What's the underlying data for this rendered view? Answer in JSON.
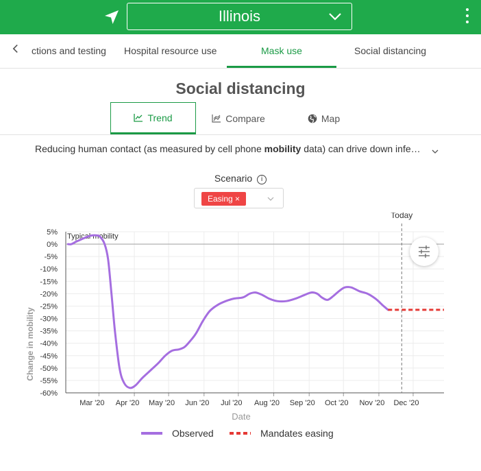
{
  "header": {
    "state": "Illinois",
    "location_icon": "location-arrow-icon",
    "dropdown_icon": "chevron-down-icon",
    "menu_icon": "kebab-menu-icon",
    "color": "#1faa4b"
  },
  "tabs": {
    "back_icon": "chevron-left-icon",
    "items": [
      {
        "label": "ctions and testing"
      },
      {
        "label": "Hospital resource use"
      },
      {
        "label": "Mask use"
      },
      {
        "label": "Social distancing"
      }
    ],
    "active_index": 2,
    "active_color": "#1a9a45"
  },
  "page_title": "Social distancing",
  "view_tabs": [
    {
      "label": "Trend",
      "icon": "line-chart-icon",
      "active": true
    },
    {
      "label": "Compare",
      "icon": "compare-chart-icon",
      "active": false
    },
    {
      "label": "Map",
      "icon": "globe-icon",
      "active": false
    }
  ],
  "description": {
    "before": "Reducing human contact (as measured by cell phone ",
    "bold": "mobility",
    "after": " data) can drive down infe…",
    "expand_icon": "chevron-down-icon"
  },
  "scenario": {
    "label": "Scenario",
    "info_icon": "info-icon",
    "selected": "Easing",
    "remove_icon": "close-icon",
    "dropdown_icon": "chevron-down-icon",
    "tag_color": "#ef4545"
  },
  "chart_data": {
    "type": "line",
    "title": "",
    "xlabel": "Date",
    "ylabel": "Change in mobility",
    "ylim": [
      -60,
      5
    ],
    "y_ticks": [
      5,
      0,
      -5,
      -10,
      -15,
      -20,
      -25,
      -30,
      -35,
      -40,
      -45,
      -50,
      -55,
      -60
    ],
    "y_tick_labels": [
      "5%",
      "0%",
      "-5%",
      "-10%",
      "-15%",
      "-20%",
      "-25%",
      "-30%",
      "-35%",
      "-40%",
      "-45%",
      "-50%",
      "-55%",
      "-60%"
    ],
    "x_range": [
      "2020-02-01",
      "2020-12-28"
    ],
    "x_ticks": [
      {
        "date": "2020-03-01",
        "label": "Mar '20"
      },
      {
        "date": "2020-04-01",
        "label": "Apr '20"
      },
      {
        "date": "2020-05-01",
        "label": "May '20"
      },
      {
        "date": "2020-06-01",
        "label": "Jun '20"
      },
      {
        "date": "2020-07-01",
        "label": "Jul '20"
      },
      {
        "date": "2020-08-01",
        "label": "Aug '20"
      },
      {
        "date": "2020-09-01",
        "label": "Sep '20"
      },
      {
        "date": "2020-10-01",
        "label": "Oct '20"
      },
      {
        "date": "2020-11-01",
        "label": "Nov '20"
      },
      {
        "date": "2020-12-01",
        "label": "Dec '20"
      }
    ],
    "grid": true,
    "legend_position": "bottom",
    "reference_line": {
      "value": 0,
      "label": "Typical mobility"
    },
    "today": {
      "date": "2020-11-21",
      "label": "Today"
    },
    "filter_icon": "sliders-icon",
    "series": [
      {
        "name": "Observed",
        "color": "#a56ee0",
        "style": "solid",
        "points": [
          [
            "2020-02-03",
            0
          ],
          [
            "2020-02-06",
            0
          ],
          [
            "2020-02-10",
            1
          ],
          [
            "2020-02-15",
            2
          ],
          [
            "2020-02-20",
            3
          ],
          [
            "2020-02-24",
            3.5
          ],
          [
            "2020-02-28",
            3.5
          ],
          [
            "2020-03-02",
            3
          ],
          [
            "2020-03-06",
            0
          ],
          [
            "2020-03-09",
            -6
          ],
          [
            "2020-03-12",
            -20
          ],
          [
            "2020-03-15",
            -35
          ],
          [
            "2020-03-19",
            -50
          ],
          [
            "2020-03-23",
            -56
          ],
          [
            "2020-03-28",
            -58
          ],
          [
            "2020-04-02",
            -57
          ],
          [
            "2020-04-08",
            -54
          ],
          [
            "2020-04-15",
            -51
          ],
          [
            "2020-04-22",
            -48
          ],
          [
            "2020-04-28",
            -45
          ],
          [
            "2020-05-04",
            -43
          ],
          [
            "2020-05-10",
            -42.5
          ],
          [
            "2020-05-15",
            -41.5
          ],
          [
            "2020-05-20",
            -39
          ],
          [
            "2020-05-25",
            -36
          ],
          [
            "2020-05-31",
            -31
          ],
          [
            "2020-06-06",
            -27
          ],
          [
            "2020-06-13",
            -24.5
          ],
          [
            "2020-06-20",
            -23
          ],
          [
            "2020-06-27",
            -22
          ],
          [
            "2020-07-05",
            -21.5
          ],
          [
            "2020-07-11",
            -20
          ],
          [
            "2020-07-16",
            -19.5
          ],
          [
            "2020-07-22",
            -20.5
          ],
          [
            "2020-07-28",
            -22
          ],
          [
            "2020-08-04",
            -23
          ],
          [
            "2020-08-12",
            -23
          ],
          [
            "2020-08-20",
            -22
          ],
          [
            "2020-08-28",
            -20.5
          ],
          [
            "2020-09-03",
            -19.5
          ],
          [
            "2020-09-08",
            -20
          ],
          [
            "2020-09-12",
            -21.5
          ],
          [
            "2020-09-17",
            -22.5
          ],
          [
            "2020-09-22",
            -21
          ],
          [
            "2020-09-27",
            -19
          ],
          [
            "2020-10-02",
            -17.5
          ],
          [
            "2020-10-08",
            -17.5
          ],
          [
            "2020-10-15",
            -19
          ],
          [
            "2020-10-22",
            -20
          ],
          [
            "2020-10-29",
            -22
          ],
          [
            "2020-11-04",
            -24.5
          ],
          [
            "2020-11-09",
            -26.5
          ]
        ]
      },
      {
        "name": "Mandates easing",
        "color": "#e53935",
        "style": "dashed",
        "points": [
          [
            "2020-11-09",
            -26.5
          ],
          [
            "2020-11-21",
            -26.5
          ],
          [
            "2020-12-28",
            -26.5
          ]
        ]
      }
    ]
  }
}
